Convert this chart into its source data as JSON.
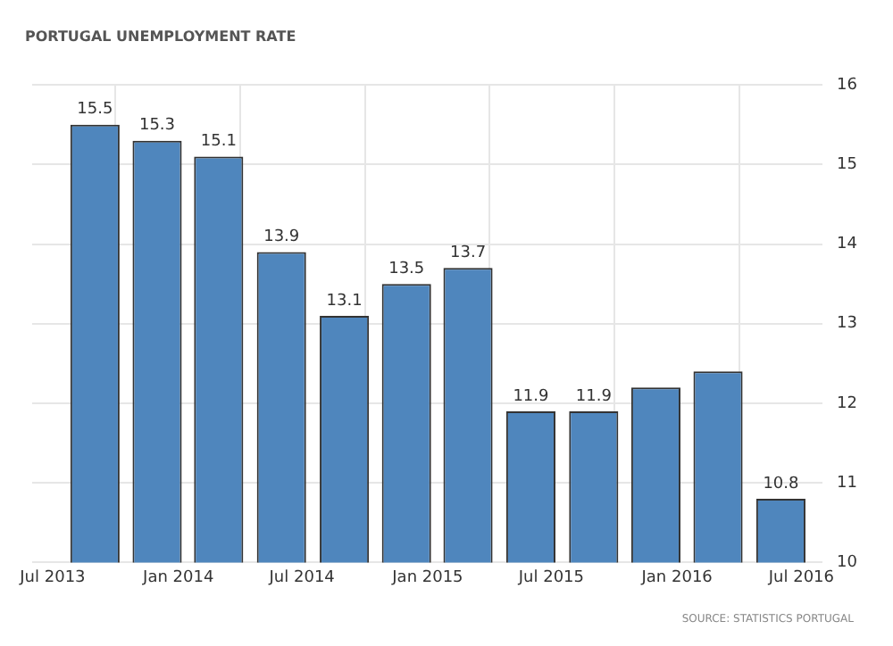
{
  "chart_data": {
    "type": "bar",
    "title": "PORTUGAL UNEMPLOYMENT RATE",
    "x": [
      "2013-09",
      "2013-12",
      "2014-03",
      "2014-06",
      "2014-09",
      "2014-12",
      "2015-03",
      "2015-06",
      "2015-09",
      "2015-12",
      "2016-03",
      "2016-06"
    ],
    "values": [
      15.5,
      15.3,
      15.1,
      13.9,
      13.1,
      13.5,
      13.7,
      11.9,
      11.9,
      12.2,
      12.4,
      10.8
    ],
    "value_labels": [
      "15.5",
      "15.3",
      "15.1",
      "13.9",
      "13.1",
      "13.5",
      "13.7",
      "11.9",
      "11.9",
      null,
      null,
      "10.8"
    ],
    "color": "#4f86bd",
    "xlim": [
      "2013-06",
      "2016-08"
    ],
    "xticks": [
      {
        "value": "2013-07",
        "label": "Jul 2013"
      },
      {
        "value": "2014-01",
        "label": "Jan 2014"
      },
      {
        "value": "2014-07",
        "label": "Jul 2014"
      },
      {
        "value": "2015-01",
        "label": "Jan 2015"
      },
      {
        "value": "2015-07",
        "label": "Jul 2015"
      },
      {
        "value": "2016-01",
        "label": "Jan 2016"
      },
      {
        "value": "2016-07",
        "label": "Jul 2016"
      }
    ],
    "ylim": [
      10,
      16
    ],
    "yticks": [
      10,
      11,
      12,
      13,
      14,
      15,
      16
    ],
    "grid": true,
    "legend": false,
    "annotations": [
      "SOURCE: STATISTICS PORTUGAL"
    ]
  }
}
